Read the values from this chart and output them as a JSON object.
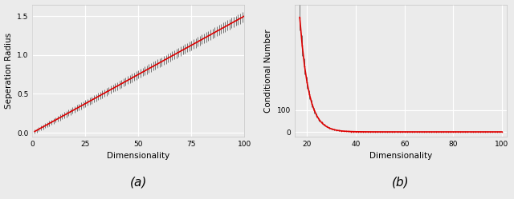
{
  "fig_width": 6.4,
  "fig_height": 2.49,
  "dpi": 100,
  "background_color": "#ebebeb",
  "plot_bg_color": "#ebebeb",
  "subplot_a": {
    "xlabel": "Dimensionality",
    "ylabel": "Seperation Radius",
    "xlim": [
      0,
      100
    ],
    "ylim": [
      -0.05,
      1.65
    ],
    "xticks": [
      0,
      25,
      50,
      75,
      100
    ],
    "yticks": [
      0.0,
      0.5,
      1.0,
      1.5
    ],
    "ytick_labels": [
      "0.0",
      "0.5",
      "1.0",
      "1.5"
    ],
    "caption": "(a)",
    "line_color": "#dd0000",
    "errorbar_color": "#444444",
    "line_width": 1.2
  },
  "subplot_b": {
    "xlabel": "Dimensionality",
    "ylabel": "Conditional Number",
    "xlim": [
      15,
      102
    ],
    "ylim": [
      -20,
      580
    ],
    "xticks": [
      20,
      40,
      60,
      80,
      100
    ],
    "yticks": [
      0,
      100
    ],
    "ytick_labels": [
      "0",
      "100"
    ],
    "caption": "(b)",
    "line_color": "#dd0000",
    "errorbar_color": "#444444",
    "line_width": 1.2
  }
}
